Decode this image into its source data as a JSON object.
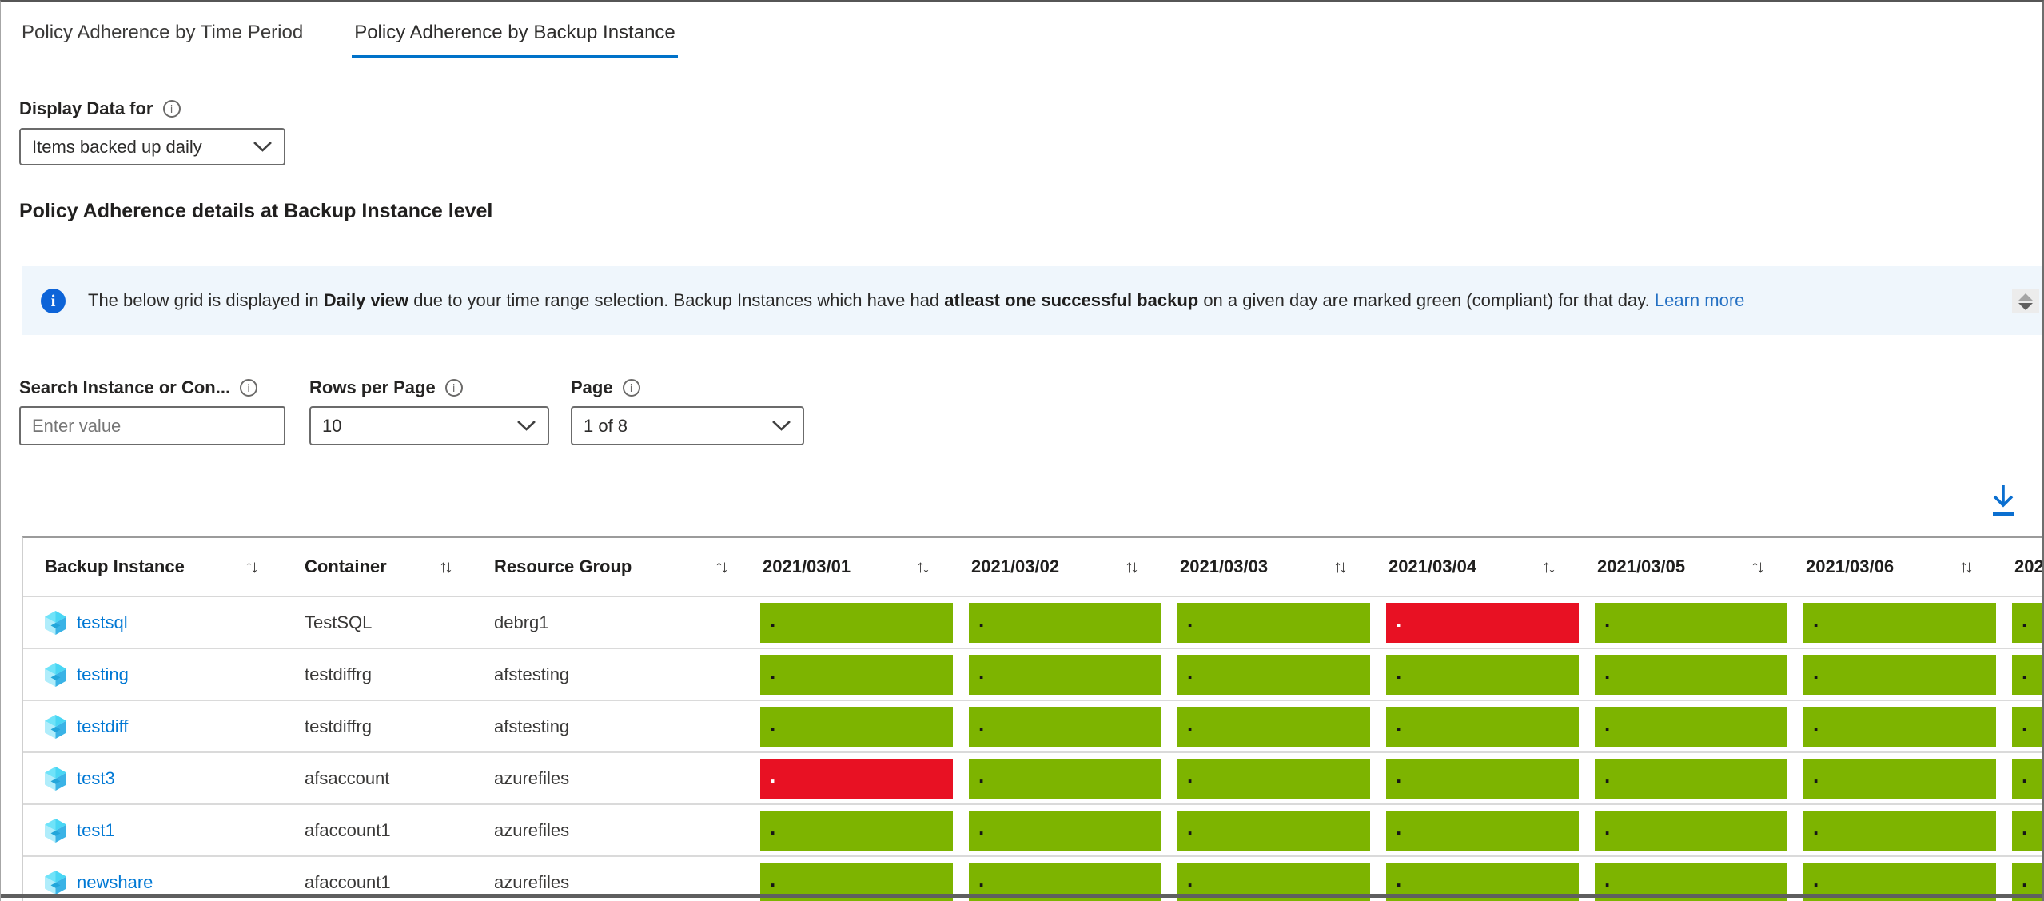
{
  "tabs": [
    {
      "label": "Policy Adherence by Time Period",
      "active": false
    },
    {
      "label": "Policy Adherence by Backup Instance",
      "active": true
    }
  ],
  "display_data": {
    "label": "Display Data for",
    "value": "Items backed up daily"
  },
  "section_title": "Policy Adherence details at Backup Instance level",
  "banner": {
    "pre": "The below grid is displayed in ",
    "bold1": "Daily view",
    "mid": " due to your time range selection. Backup Instances which have had ",
    "bold2": "atleast one successful backup",
    "post": " on a given day are marked green (compliant) for that day. ",
    "link": "Learn more"
  },
  "filters": {
    "search": {
      "label": "Search Instance or Con...",
      "placeholder": "Enter value"
    },
    "rows_per_page": {
      "label": "Rows per Page",
      "value": "10"
    },
    "page": {
      "label": "Page",
      "value": "1 of 8"
    }
  },
  "icons": {
    "info": "i",
    "sort_up": "↑",
    "sort_down": "↓"
  },
  "table": {
    "text_columns": [
      {
        "label": "Backup Instance"
      },
      {
        "label": "Container"
      },
      {
        "label": "Resource Group"
      }
    ],
    "date_columns": [
      {
        "label": "2021/03/01",
        "sort": true
      },
      {
        "label": "2021/03/02",
        "sort": true
      },
      {
        "label": "2021/03/03",
        "sort": true
      },
      {
        "label": "2021/03/04",
        "sort": true
      },
      {
        "label": "2021/03/05",
        "sort": true
      },
      {
        "label": "2021/03/06",
        "sort": true
      },
      {
        "label": "202",
        "sort": false,
        "partial": true
      }
    ],
    "cell_dot": ".",
    "rows": [
      {
        "name": "testsql",
        "container": "TestSQL",
        "resource_group": "debrg1",
        "cells": [
          "green",
          "green",
          "green",
          "red",
          "green",
          "green",
          "green"
        ]
      },
      {
        "name": "testing",
        "container": "testdiffrg",
        "resource_group": "afstesting",
        "cells": [
          "green",
          "green",
          "green",
          "green",
          "green",
          "green",
          "green"
        ]
      },
      {
        "name": "testdiff",
        "container": "testdiffrg",
        "resource_group": "afstesting",
        "cells": [
          "green",
          "green",
          "green",
          "green",
          "green",
          "green",
          "green"
        ]
      },
      {
        "name": "test3",
        "container": "afsaccount",
        "resource_group": "azurefiles",
        "cells": [
          "red",
          "green",
          "green",
          "green",
          "green",
          "green",
          "green"
        ]
      },
      {
        "name": "test1",
        "container": "afaccount1",
        "resource_group": "azurefiles",
        "cells": [
          "green",
          "green",
          "green",
          "green",
          "green",
          "green",
          "green"
        ]
      },
      {
        "name": "newshare",
        "container": "afaccount1",
        "resource_group": "azurefiles",
        "cells": [
          "green",
          "green",
          "green",
          "green",
          "green",
          "green",
          "green"
        ]
      }
    ]
  },
  "colors": {
    "compliant_green": "#7db400",
    "noncompliant_red": "#e81123",
    "accent_blue": "#0078d4",
    "tab_underline_blue": "#0072c9",
    "banner_bg": "#eff6fc",
    "info_icon_blue": "#0d64d8"
  }
}
